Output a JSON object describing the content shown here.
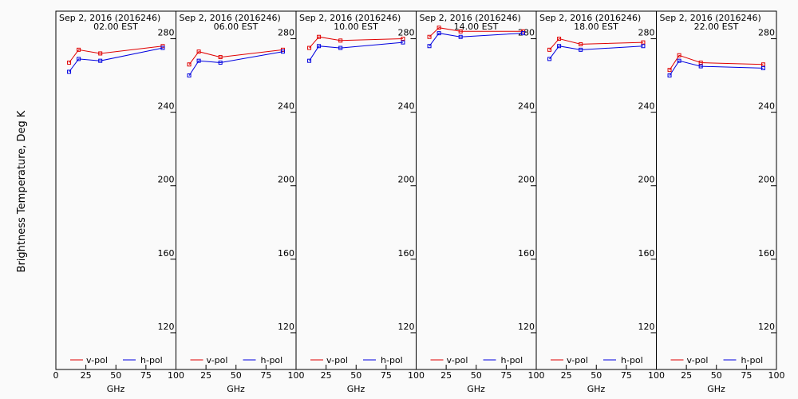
{
  "chart_data": {
    "type": "line",
    "ylabel": "Brightness Temperature, Deg K",
    "xlabel": "GHz",
    "xlim": [
      0,
      100
    ],
    "ylim": [
      100,
      295
    ],
    "xticks": [
      0,
      25,
      50,
      75,
      100
    ],
    "yticks": [
      120,
      160,
      200,
      240,
      280
    ],
    "date_label": "Sep  2, 2016 (2016246)",
    "legend": [
      {
        "name": "v-pol",
        "color": "#e00000"
      },
      {
        "name": "h-pol",
        "color": "#0000e0"
      }
    ],
    "panels": [
      {
        "time": "02.00 EST",
        "x": [
          11,
          19,
          37,
          89
        ],
        "v": [
          267,
          274,
          272,
          276
        ],
        "h": [
          262,
          269,
          268,
          275
        ]
      },
      {
        "time": "06.00 EST",
        "x": [
          11,
          19,
          37,
          89
        ],
        "v": [
          266,
          273,
          270,
          274
        ],
        "h": [
          260,
          268,
          267,
          273
        ]
      },
      {
        "time": "10.00 EST",
        "x": [
          11,
          19,
          37,
          89
        ],
        "v": [
          275,
          281,
          279,
          280
        ],
        "h": [
          268,
          276,
          275,
          278
        ]
      },
      {
        "time": "14.00 EST",
        "x": [
          11,
          19,
          37,
          89
        ],
        "v": [
          281,
          286,
          284,
          284
        ],
        "h": [
          276,
          283,
          281,
          283
        ]
      },
      {
        "time": "18.00 EST",
        "x": [
          11,
          19,
          37,
          89
        ],
        "v": [
          274,
          280,
          277,
          278
        ],
        "h": [
          269,
          276,
          274,
          276
        ]
      },
      {
        "time": "22.00 EST",
        "x": [
          11,
          19,
          37,
          89
        ],
        "v": [
          263,
          271,
          267,
          266
        ],
        "h": [
          260,
          268,
          265,
          264
        ]
      }
    ]
  }
}
